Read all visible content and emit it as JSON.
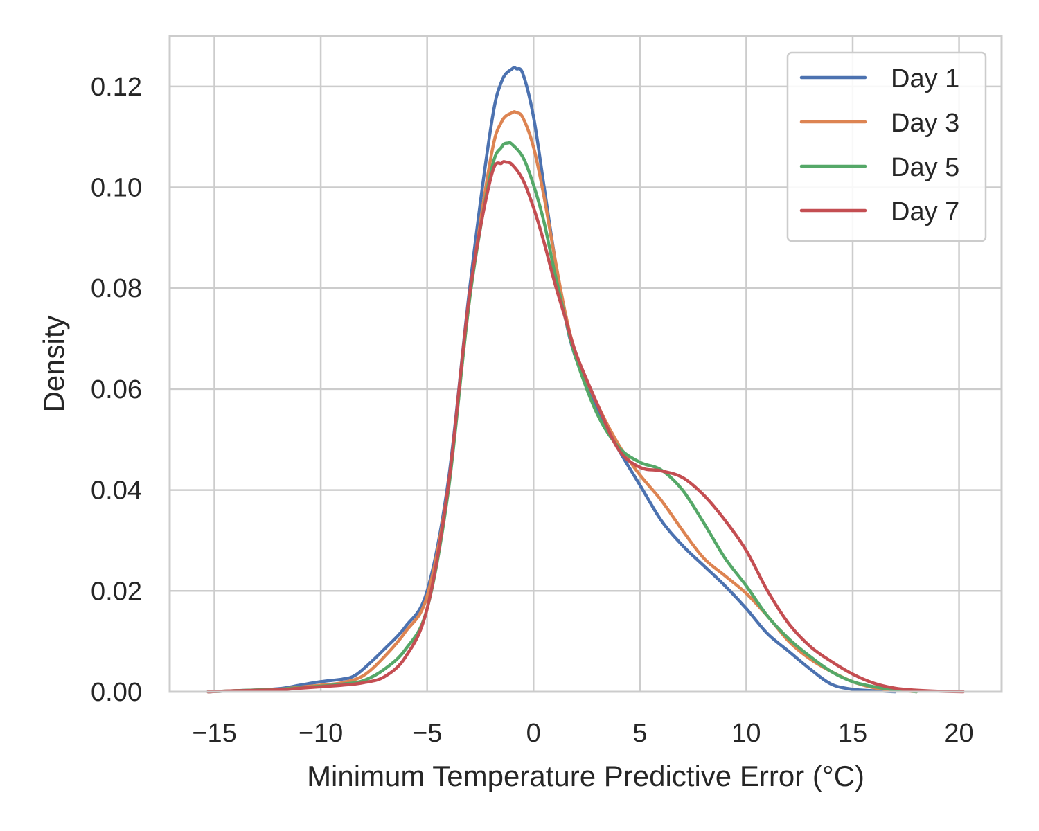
{
  "chart_data": {
    "type": "line",
    "title": "",
    "xlabel": "Minimum Temperature Predictive Error (°C)",
    "ylabel": "Density",
    "xlim": [
      -17.1,
      22.0
    ],
    "ylim": [
      0.0,
      0.13
    ],
    "x_ticks": [
      -15,
      -10,
      -5,
      0,
      5,
      10,
      15,
      20
    ],
    "x_tick_labels": [
      "−15",
      "−10",
      "−5",
      "0",
      "5",
      "10",
      "15",
      "20"
    ],
    "y_ticks": [
      0.0,
      0.02,
      0.04,
      0.06,
      0.08,
      0.1,
      0.12
    ],
    "y_tick_labels": [
      "0.00",
      "0.02",
      "0.04",
      "0.06",
      "0.08",
      "0.10",
      "0.12"
    ],
    "grid": true,
    "legend_position": "top-right",
    "series": [
      {
        "name": "Day 1",
        "color": "#4c72b0",
        "x": [
          -15.3,
          -14,
          -12,
          -11,
          -10,
          -9,
          -8.5,
          -8,
          -7,
          -6,
          -5,
          -4,
          -3,
          -2,
          -1.5,
          -1,
          -0.8,
          -0.5,
          0,
          0.5,
          1,
          1.5,
          2,
          3,
          4,
          5,
          6,
          7,
          8,
          9,
          10,
          11,
          12,
          13,
          14,
          15,
          16,
          17
        ],
        "values": [
          0.0,
          0.0002,
          0.0006,
          0.0013,
          0.002,
          0.0025,
          0.003,
          0.0045,
          0.0085,
          0.013,
          0.02,
          0.042,
          0.08,
          0.112,
          0.121,
          0.1235,
          0.1235,
          0.1225,
          0.114,
          0.1,
          0.086,
          0.074,
          0.066,
          0.056,
          0.048,
          0.041,
          0.034,
          0.029,
          0.025,
          0.021,
          0.0165,
          0.0115,
          0.008,
          0.0045,
          0.0015,
          0.0005,
          0.0002,
          0.0
        ]
      },
      {
        "name": "Day 3",
        "color": "#dd8452",
        "x": [
          -15.3,
          -14,
          -12,
          -11,
          -10,
          -9,
          -8,
          -7,
          -6,
          -5,
          -4,
          -3,
          -2,
          -1.5,
          -1,
          -0.8,
          -0.5,
          0,
          0.5,
          1,
          1.5,
          2,
          3,
          4,
          5,
          6,
          7,
          8,
          9,
          10,
          11,
          12,
          13,
          14,
          15,
          16,
          17,
          18
        ],
        "values": [
          0.0,
          0.0002,
          0.0005,
          0.0009,
          0.0013,
          0.0018,
          0.0032,
          0.007,
          0.012,
          0.019,
          0.041,
          0.078,
          0.106,
          0.113,
          0.1148,
          0.1148,
          0.1138,
          0.108,
          0.098,
          0.086,
          0.075,
          0.067,
          0.057,
          0.049,
          0.043,
          0.038,
          0.032,
          0.0265,
          0.023,
          0.0195,
          0.015,
          0.01,
          0.0065,
          0.004,
          0.002,
          0.0008,
          0.0003,
          0.0
        ]
      },
      {
        "name": "Day 5",
        "color": "#55a868",
        "x": [
          -15.3,
          -14,
          -12,
          -11,
          -10,
          -9,
          -8,
          -7,
          -6,
          -5,
          -4,
          -3,
          -2,
          -1.5,
          -1.2,
          -1,
          -0.5,
          0,
          0.5,
          1,
          1.5,
          2,
          3,
          4,
          5,
          6,
          7,
          8,
          9,
          10,
          11,
          12,
          13,
          14,
          15,
          16,
          17,
          18
        ],
        "values": [
          0.0,
          0.0002,
          0.0005,
          0.0008,
          0.0011,
          0.0015,
          0.0022,
          0.0045,
          0.0085,
          0.0165,
          0.04,
          0.078,
          0.103,
          0.108,
          0.1088,
          0.1085,
          0.106,
          0.1005,
          0.093,
          0.083,
          0.074,
          0.066,
          0.055,
          0.0485,
          0.0455,
          0.044,
          0.04,
          0.0335,
          0.0265,
          0.021,
          0.015,
          0.0105,
          0.007,
          0.004,
          0.002,
          0.001,
          0.0004,
          0.0
        ]
      },
      {
        "name": "Day 7",
        "color": "#c44e52",
        "x": [
          -15.3,
          -14,
          -12,
          -11,
          -10,
          -9,
          -8,
          -7,
          -6,
          -5,
          -4,
          -3,
          -2,
          -1.5,
          -1.3,
          -1,
          -0.5,
          0,
          0.5,
          1,
          1.5,
          2,
          3,
          4,
          5,
          6,
          7,
          8,
          9,
          10,
          11,
          12,
          13,
          14,
          15,
          16,
          17,
          18,
          19,
          20.2
        ],
        "values": [
          0.0,
          0.0002,
          0.0004,
          0.0007,
          0.001,
          0.0013,
          0.0018,
          0.003,
          0.007,
          0.0165,
          0.041,
          0.079,
          0.102,
          0.1048,
          0.105,
          0.1045,
          0.1015,
          0.096,
          0.089,
          0.081,
          0.074,
          0.067,
          0.057,
          0.048,
          0.0445,
          0.0438,
          0.0425,
          0.039,
          0.034,
          0.028,
          0.02,
          0.0135,
          0.009,
          0.006,
          0.0035,
          0.0017,
          0.0007,
          0.0003,
          0.0001,
          0.0
        ]
      }
    ]
  }
}
